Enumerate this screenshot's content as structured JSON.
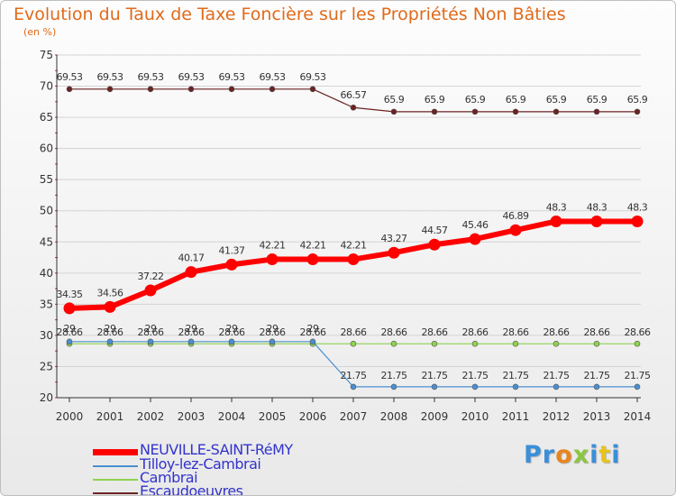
{
  "chart_data": {
    "type": "line",
    "title": "Evolution du Taux de Taxe Foncière sur les Propriétés Non Bâties",
    "subtitle": "(en %)",
    "x": [
      "2000",
      "2001",
      "2002",
      "2003",
      "2004",
      "2005",
      "2006",
      "2007",
      "2008",
      "2009",
      "2010",
      "2011",
      "2012",
      "2013",
      "2014"
    ],
    "ylim": [
      20,
      75
    ],
    "yticks": [
      "20",
      "25",
      "30",
      "35",
      "40",
      "45",
      "50",
      "55",
      "60",
      "65",
      "70",
      "75"
    ],
    "grid": "horizontal",
    "legend_position": "bottom-left",
    "series": [
      {
        "name": "NEUVILLE-SAINT-RéMY",
        "color": "#ff0000",
        "values": [
          34.35,
          34.56,
          37.22,
          40.17,
          41.37,
          42.21,
          42.21,
          42.21,
          43.27,
          44.57,
          45.46,
          46.89,
          48.3,
          48.3,
          48.3
        ],
        "labels": [
          "34.35",
          "34.56",
          "37.22",
          "40.17",
          "41.37",
          "42.21",
          "42.21",
          "42.21",
          "43.27",
          "44.57",
          "45.46",
          "46.89",
          "48.3",
          "48.3",
          "48.3"
        ]
      },
      {
        "name": "Tilloy-lez-Cambrai",
        "color": "#4a8fcf",
        "values": [
          29,
          29,
          29,
          29,
          29,
          29,
          29,
          21.75,
          21.75,
          21.75,
          21.75,
          21.75,
          21.75,
          21.75,
          21.75
        ],
        "labels": [
          "29",
          "29",
          "29",
          "29",
          "29",
          "29",
          "29",
          "21.75",
          "21.75",
          "21.75",
          "21.75",
          "21.75",
          "21.75",
          "21.75",
          "21.75"
        ]
      },
      {
        "name": "Cambrai",
        "color": "#8fd14f",
        "values": [
          28.66,
          28.66,
          28.66,
          28.66,
          28.66,
          28.66,
          28.66,
          28.66,
          28.66,
          28.66,
          28.66,
          28.66,
          28.66,
          28.66,
          28.66
        ],
        "labels": [
          "28.66",
          "28.66",
          "28.66",
          "28.66",
          "28.66",
          "28.66",
          "28.66",
          "28.66",
          "28.66",
          "28.66",
          "28.66",
          "28.66",
          "28.66",
          "28.66",
          "28.66"
        ]
      },
      {
        "name": "Escaudoeuvres",
        "color": "#6b2222",
        "values": [
          69.53,
          69.53,
          69.53,
          69.53,
          69.53,
          69.53,
          69.53,
          66.57,
          65.9,
          65.9,
          65.9,
          65.9,
          65.9,
          65.9,
          65.9
        ],
        "labels": [
          "69.53",
          "69.53",
          "69.53",
          "69.53",
          "69.53",
          "69.53",
          "69.53",
          "66.57",
          "65.9",
          "65.9",
          "65.9",
          "65.9",
          "65.9",
          "65.9",
          "65.9"
        ]
      }
    ]
  },
  "logo": {
    "text": "Proxiti",
    "letters": [
      {
        "ch": "P",
        "color": "#3a8fd8"
      },
      {
        "ch": "r",
        "color": "#3a8fd8"
      },
      {
        "ch": "o",
        "color": "#e8851c"
      },
      {
        "ch": "x",
        "color": "#8cc63f"
      },
      {
        "ch": "i",
        "color": "#3a8fd8"
      },
      {
        "ch": "t",
        "color": "#e8c31c"
      },
      {
        "ch": "i",
        "color": "#3a8fd8"
      }
    ]
  }
}
